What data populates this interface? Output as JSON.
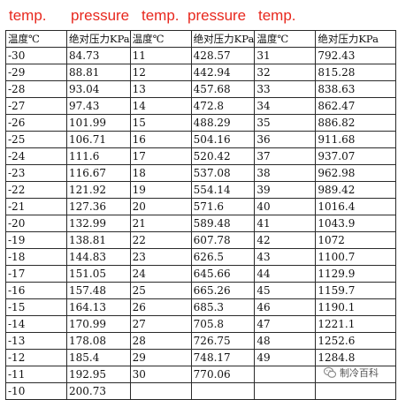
{
  "annotations": [
    "temp.",
    "pressure",
    "temp.",
    "pressure",
    "temp."
  ],
  "table": {
    "headers": [
      "温度℃",
      "绝对压力KPa",
      "温度℃",
      "绝对压力KPa",
      "温度℃",
      "绝对压力KPa"
    ],
    "rows": [
      [
        "-30",
        "84.73",
        "11",
        "428.57",
        "31",
        "792.43"
      ],
      [
        "-29",
        "88.81",
        "12",
        "442.94",
        "32",
        "815.28"
      ],
      [
        "-28",
        "93.04",
        "13",
        "457.68",
        "33",
        "838.63"
      ],
      [
        "-27",
        "97.43",
        "14",
        "472.8",
        "34",
        "862.47"
      ],
      [
        "-26",
        "101.99",
        "15",
        "488.29",
        "35",
        "886.82"
      ],
      [
        "-25",
        "106.71",
        "16",
        "504.16",
        "36",
        "911.68"
      ],
      [
        "-24",
        "111.6",
        "17",
        "520.42",
        "37",
        "937.07"
      ],
      [
        "-23",
        "116.67",
        "18",
        "537.08",
        "38",
        "962.98"
      ],
      [
        "-22",
        "121.92",
        "19",
        "554.14",
        "39",
        "989.42"
      ],
      [
        "-21",
        "127.36",
        "20",
        "571.6",
        "40",
        "1016.4"
      ],
      [
        "-20",
        "132.99",
        "21",
        "589.48",
        "41",
        "1043.9"
      ],
      [
        "-19",
        "138.81",
        "22",
        "607.78",
        "42",
        "1072"
      ],
      [
        "-18",
        "144.83",
        "23",
        "626.5",
        "43",
        "1100.7"
      ],
      [
        "-17",
        "151.05",
        "24",
        "645.66",
        "44",
        "1129.9"
      ],
      [
        "-16",
        "157.48",
        "25",
        "665.26",
        "45",
        "1159.7"
      ],
      [
        "-15",
        "164.13",
        "26",
        "685.3",
        "46",
        "1190.1"
      ],
      [
        "-14",
        "170.99",
        "27",
        "705.8",
        "47",
        "1221.1"
      ],
      [
        "-13",
        "178.08",
        "28",
        "726.75",
        "48",
        "1252.6"
      ],
      [
        "-12",
        "185.4",
        "29",
        "748.17",
        "49",
        "1284.8"
      ],
      [
        "-11",
        "192.95",
        "30",
        "770.06",
        "",
        ""
      ],
      [
        "-10",
        "200.73",
        "",
        "",
        "",
        ""
      ]
    ]
  },
  "watermark": {
    "text": "制冷百科",
    "icon": "wechat-bubble-icon",
    "icon_color": "#8a8a8a"
  }
}
